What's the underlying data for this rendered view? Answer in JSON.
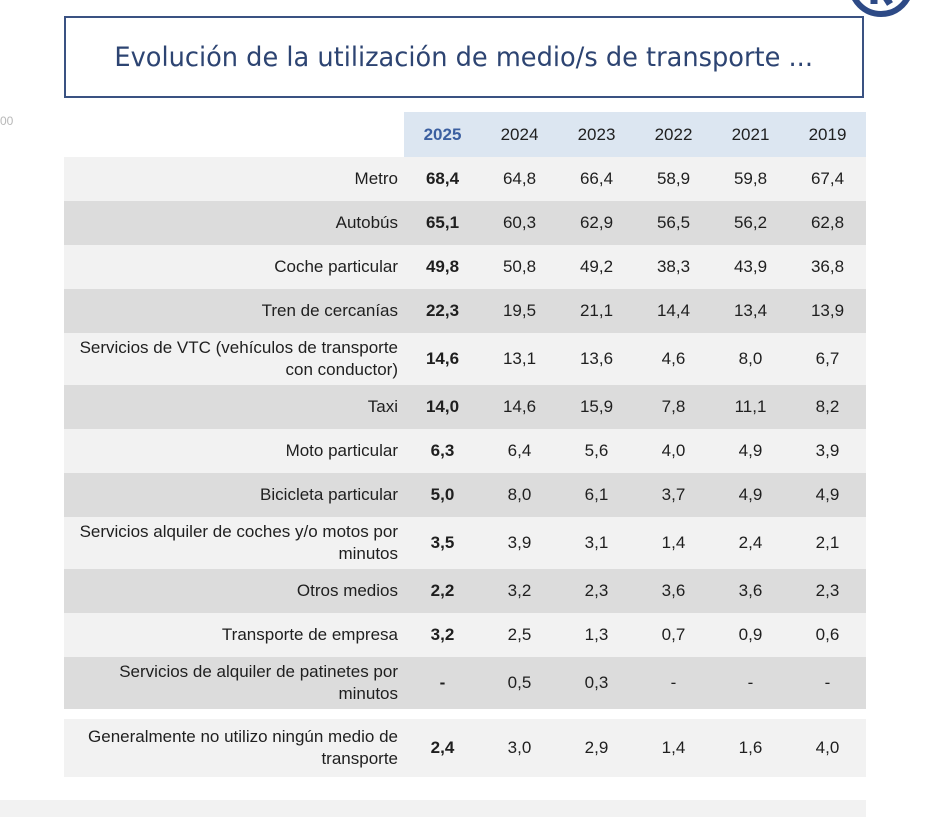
{
  "title": "Evolución de la utilización de medio/s de transporte ...",
  "side_mark": "00",
  "columns": [
    "2025",
    "2024",
    "2023",
    "2022",
    "2021",
    "2019"
  ],
  "rows": [
    {
      "label": "Metro",
      "values": [
        "68,4",
        "64,8",
        "66,4",
        "58,9",
        "59,8",
        "67,4"
      ]
    },
    {
      "label": "Autobús",
      "values": [
        "65,1",
        "60,3",
        "62,9",
        "56,5",
        "56,2",
        "62,8"
      ]
    },
    {
      "label": "Coche particular",
      "values": [
        "49,8",
        "50,8",
        "49,2",
        "38,3",
        "43,9",
        "36,8"
      ]
    },
    {
      "label": "Tren de cercanías",
      "values": [
        "22,3",
        "19,5",
        "21,1",
        "14,4",
        "13,4",
        "13,9"
      ]
    },
    {
      "label": "Servicios de VTC (vehículos de transporte con conductor)",
      "values": [
        "14,6",
        "13,1",
        "13,6",
        "4,6",
        "8,0",
        "6,7"
      ]
    },
    {
      "label": "Taxi",
      "values": [
        "14,0",
        "14,6",
        "15,9",
        "7,8",
        "11,1",
        "8,2"
      ]
    },
    {
      "label": "Moto particular",
      "values": [
        "6,3",
        "6,4",
        "5,6",
        "4,0",
        "4,9",
        "3,9"
      ]
    },
    {
      "label": "Bicicleta particular",
      "values": [
        "5,0",
        "8,0",
        "6,1",
        "3,7",
        "4,9",
        "4,9"
      ]
    },
    {
      "label": "Servicios alquiler de coches y/o motos por minutos",
      "values": [
        "3,5",
        "3,9",
        "3,1",
        "1,4",
        "2,4",
        "2,1"
      ]
    },
    {
      "label": "Otros medios",
      "values": [
        "2,2",
        "3,2",
        "2,3",
        "3,6",
        "3,6",
        "2,3"
      ]
    },
    {
      "label": "Transporte de empresa",
      "values": [
        "3,2",
        "2,5",
        "1,3",
        "0,7",
        "0,9",
        "0,6"
      ]
    },
    {
      "label": "Servicios de alquiler de patinetes por minutos",
      "values": [
        "-",
        "0,5",
        "0,3",
        "-",
        "-",
        "-"
      ]
    }
  ],
  "total_row": {
    "label": "Generalmente no utilizo ningún medio de transporte",
    "values": [
      "2,4",
      "3,0",
      "2,9",
      "1,4",
      "1,6",
      "4,0"
    ]
  },
  "colors": {
    "title_border": "#3a5282",
    "title_text": "#2d4472",
    "header_bg": "#dce6f1",
    "highlight_year": "#3b5fa0",
    "row_light": "#f2f2f2",
    "row_dark": "#dcdcdc"
  }
}
